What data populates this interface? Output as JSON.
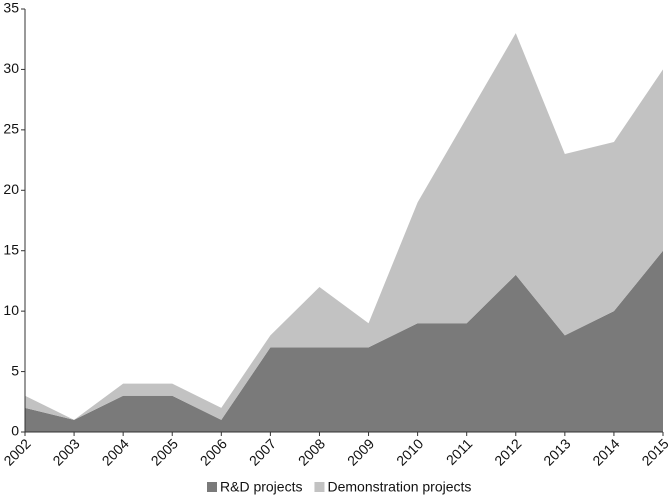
{
  "chart_data": {
    "type": "stacked_area",
    "x": [
      2002,
      2003,
      2004,
      2005,
      2006,
      2007,
      2008,
      2009,
      2010,
      2011,
      2012,
      2013,
      2014,
      2015
    ],
    "xlim": [
      2002,
      2015
    ],
    "xticks": [
      2002,
      2003,
      2004,
      2005,
      2006,
      2007,
      2008,
      2009,
      2010,
      2011,
      2012,
      2013,
      2014,
      2015
    ],
    "ylim": [
      0,
      35
    ],
    "yticks": [
      0,
      5,
      10,
      15,
      20,
      25,
      30,
      35
    ],
    "legend": "bottom",
    "series": [
      {
        "name": "R&D projects",
        "color": "#7a7a7a",
        "values": [
          2,
          1,
          3,
          3,
          1,
          7,
          7,
          7,
          9,
          9,
          13,
          8,
          10,
          15
        ]
      },
      {
        "name": "Demonstration projects",
        "color": "#c2c2c2",
        "values": [
          1,
          0,
          1,
          1,
          1,
          1,
          5,
          2,
          10,
          17,
          20,
          15,
          14,
          15
        ]
      }
    ]
  }
}
